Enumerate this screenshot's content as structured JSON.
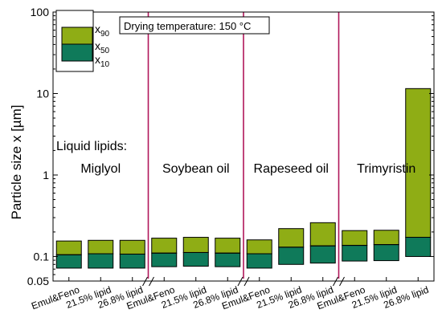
{
  "chart_data": {
    "type": "bar",
    "ylabel": "Particle size x [µm]",
    "yscale": "log",
    "ylim": [
      0.05,
      100
    ],
    "yticks": [
      "0.05",
      "0.1",
      "1",
      "10",
      "100"
    ],
    "annotation": "Drying temperature: 150 °C",
    "side_label": "Liquid lipids:",
    "legend": [
      {
        "name": "x",
        "sub": "90",
        "color": "#8fad15"
      },
      {
        "name": "x",
        "sub": "50",
        "color": "#0f7a5a"
      },
      {
        "name": "x",
        "sub": "10",
        "color": "#0f7a5a"
      }
    ],
    "groups": [
      {
        "name": "Miglyol",
        "categories": [
          "Emul&Feno",
          "21.5% lipid",
          "26.8% lipid"
        ],
        "x10": [
          0.072,
          0.072,
          0.072
        ],
        "x50": [
          0.105,
          0.108,
          0.107
        ],
        "x90": [
          0.155,
          0.158,
          0.158
        ]
      },
      {
        "name": "Soybean oil",
        "categories": [
          "Emul&Feno",
          "21.5% lipid",
          "26.8% lipid"
        ],
        "x10": [
          0.075,
          0.076,
          0.075
        ],
        "x50": [
          0.11,
          0.112,
          0.11
        ],
        "x90": [
          0.168,
          0.172,
          0.168
        ]
      },
      {
        "name": "Rapeseed oil",
        "categories": [
          "Emul&Feno",
          "21.5% lipid",
          "26.8% lipid"
        ],
        "x10": [
          0.072,
          0.08,
          0.083
        ],
        "x50": [
          0.108,
          0.13,
          0.135
        ],
        "x90": [
          0.16,
          0.22,
          0.26
        ]
      },
      {
        "name": "Trimyristin",
        "categories": [
          "Emul&Feno",
          "21.5% lipid",
          "26.8% lipid"
        ],
        "x10": [
          0.088,
          0.089,
          0.1
        ],
        "x50": [
          0.137,
          0.14,
          0.172
        ],
        "x90": [
          0.208,
          0.21,
          11.5
        ]
      }
    ]
  }
}
